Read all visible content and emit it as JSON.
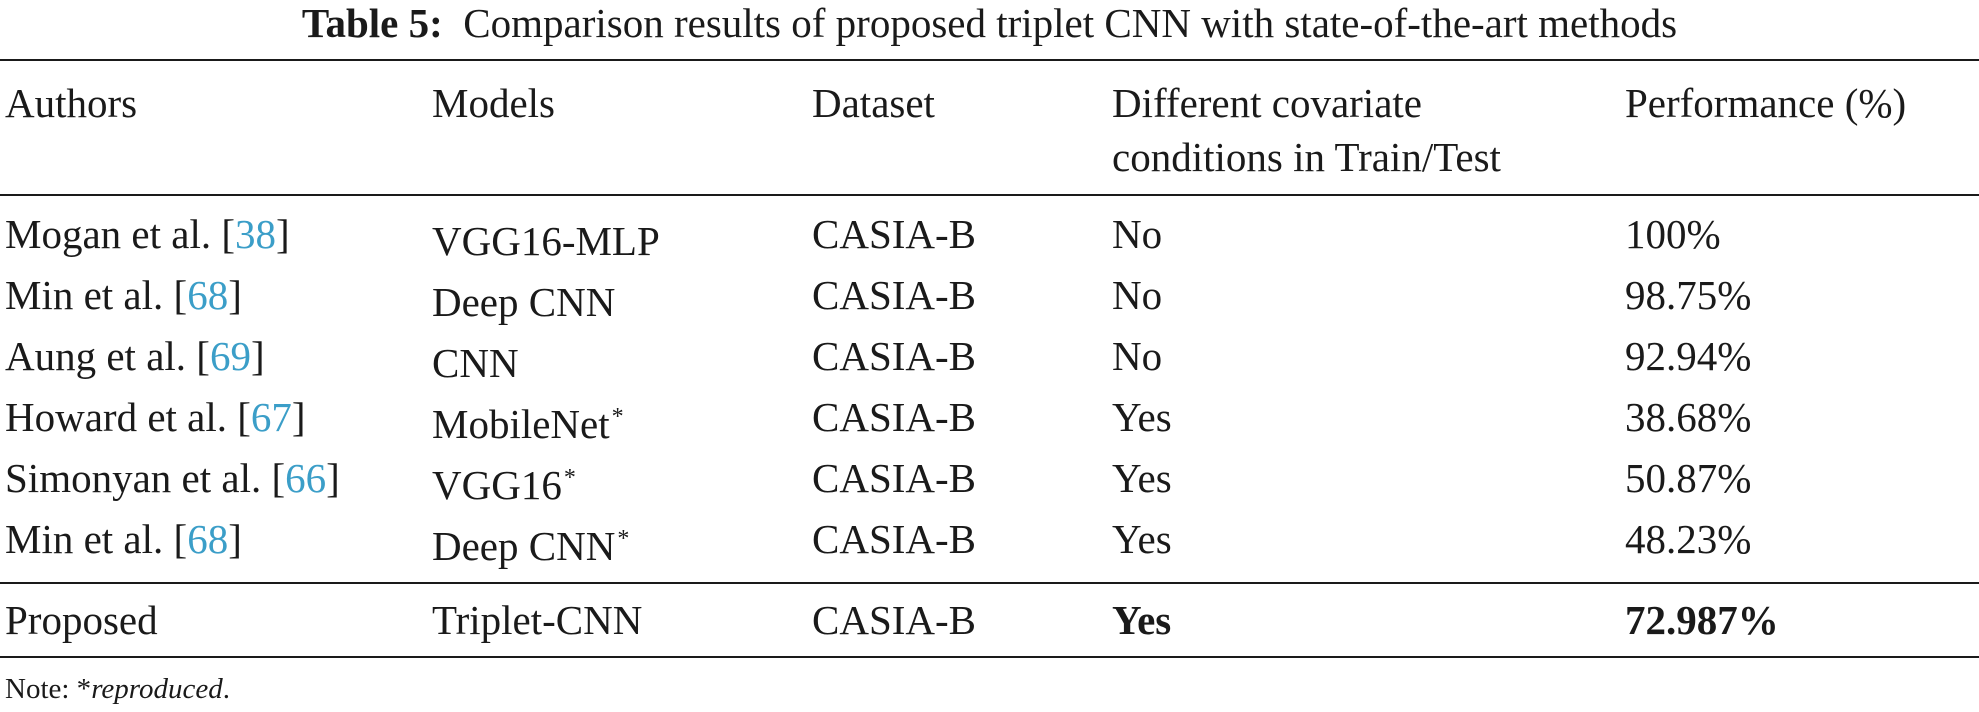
{
  "caption": {
    "label": "Table 5:",
    "text": "Comparison results of proposed triplet CNN with state-of-the-art methods"
  },
  "columns": {
    "authors": "Authors",
    "models": "Models",
    "dataset": "Dataset",
    "covariate_line1": "Different covariate",
    "covariate_line2": "conditions in Train/Test",
    "performance": "Performance (%)"
  },
  "rows": [
    {
      "author": "Mogan et al. [",
      "ref": "38",
      "close": "]",
      "model": "VGG16-MLP",
      "star": "",
      "dataset": "CASIA-B",
      "covariate": "No",
      "performance": "100%"
    },
    {
      "author": "Min et al. [",
      "ref": "68",
      "close": "]",
      "model": "Deep CNN",
      "star": "",
      "dataset": "CASIA-B",
      "covariate": "No",
      "performance": "98.75%"
    },
    {
      "author": "Aung et al. [",
      "ref": "69",
      "close": "]",
      "model": "CNN",
      "star": "",
      "dataset": "CASIA-B",
      "covariate": "No",
      "performance": "92.94%"
    },
    {
      "author": "Howard et al. [",
      "ref": "67",
      "close": "]",
      "model": "MobileNet",
      "star": "*",
      "dataset": "CASIA-B",
      "covariate": "Yes",
      "performance": "38.68%"
    },
    {
      "author": "Simonyan et al. [",
      "ref": "66",
      "close": "]",
      "model": "VGG16",
      "star": "*",
      "dataset": "CASIA-B",
      "covariate": "Yes",
      "performance": "50.87%"
    },
    {
      "author": "Min et al. [",
      "ref": "68",
      "close": "]",
      "model": "Deep CNN",
      "star": "*",
      "dataset": "CASIA-B",
      "covariate": "Yes",
      "performance": "48.23%"
    }
  ],
  "proposed": {
    "author": "Proposed",
    "model": "Triplet-CNN",
    "dataset": "CASIA-B",
    "covariate": "Yes",
    "performance": "72.987%"
  },
  "note": {
    "prefix": "Note: *",
    "text": "reproduced",
    "suffix": "."
  }
}
